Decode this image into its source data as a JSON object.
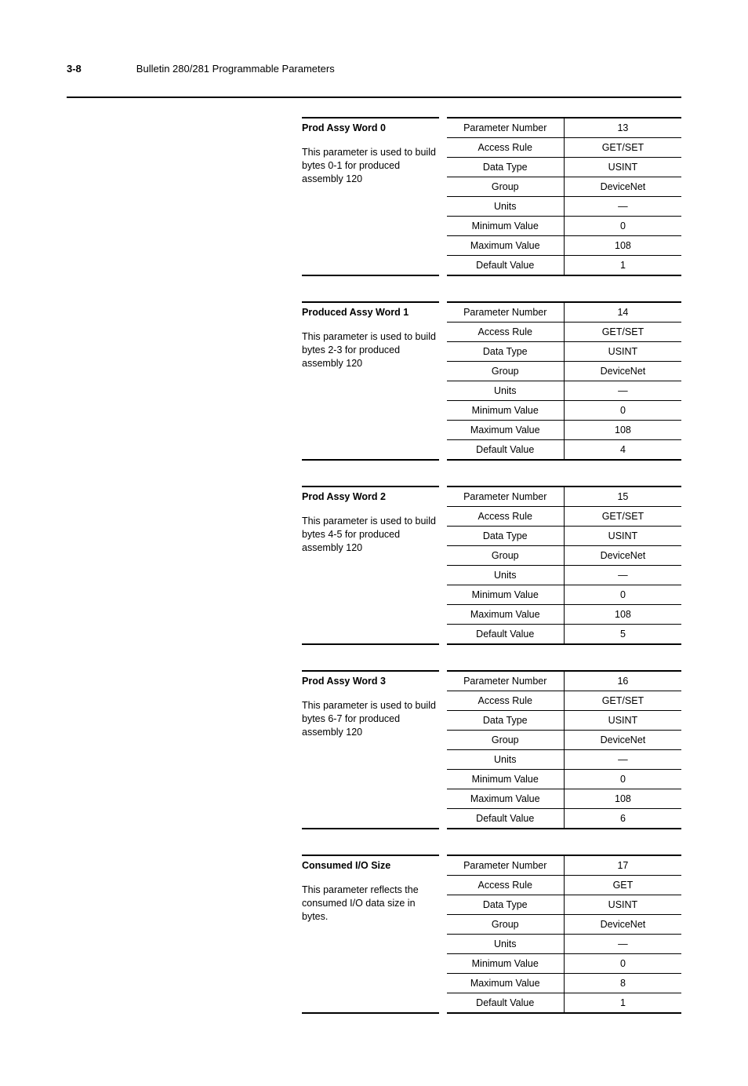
{
  "header": {
    "page_number": "3-8",
    "title": "Bulletin 280/281 Programmable Parameters"
  },
  "attribute_labels": {
    "parameter_number": "Parameter Number",
    "access_rule": "Access Rule",
    "data_type": "Data Type",
    "group": "Group",
    "units": "Units",
    "minimum_value": "Minimum Value",
    "maximum_value": "Maximum Value",
    "default_value": "Default Value"
  },
  "parameters": [
    {
      "title": "Prod Assy Word 0",
      "description": "This parameter is used to build bytes 0-1 for produced assembly 120",
      "parameter_number": "13",
      "access_rule": "GET/SET",
      "data_type": "USINT",
      "group": "DeviceNet",
      "units": "—",
      "minimum_value": "0",
      "maximum_value": "108",
      "default_value": "1"
    },
    {
      "title": "Produced Assy Word 1",
      "description": "This parameter is used to build bytes 2-3 for produced assembly 120",
      "parameter_number": "14",
      "access_rule": "GET/SET",
      "data_type": "USINT",
      "group": "DeviceNet",
      "units": "—",
      "minimum_value": "0",
      "maximum_value": "108",
      "default_value": "4"
    },
    {
      "title": "Prod Assy Word 2",
      "description": "This parameter is used to build bytes 4-5 for produced assembly 120",
      "parameter_number": "15",
      "access_rule": "GET/SET",
      "data_type": "USINT",
      "group": "DeviceNet",
      "units": "—",
      "minimum_value": "0",
      "maximum_value": "108",
      "default_value": "5"
    },
    {
      "title": "Prod Assy Word 3",
      "description": "This parameter is used to build bytes 6-7 for produced assembly 120",
      "parameter_number": "16",
      "access_rule": "GET/SET",
      "data_type": "USINT",
      "group": "DeviceNet",
      "units": "—",
      "minimum_value": "0",
      "maximum_value": "108",
      "default_value": "6"
    },
    {
      "title": "Consumed I/O Size",
      "description": "This parameter reflects the consumed I/O data size in bytes.",
      "parameter_number": "17",
      "access_rule": "GET",
      "data_type": "USINT",
      "group": "DeviceNet",
      "units": "—",
      "minimum_value": "0",
      "maximum_value": "8",
      "default_value": "1"
    }
  ]
}
